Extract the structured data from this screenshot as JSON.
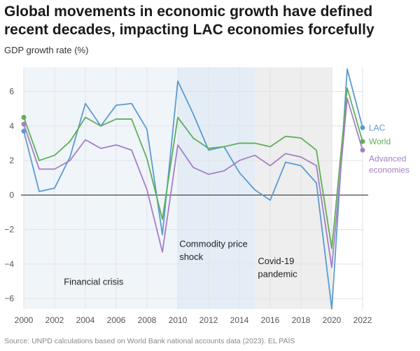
{
  "title": "Global movements in economic growth have defined recent decades, impacting LAC economies forcefully",
  "subtitle": "GDP growth rate (%)",
  "source": "Source: UNPD calculations based on World Bank national accounts data (2023). EL PAÍS",
  "colors": {
    "lac": "#5b9bd0",
    "world": "#5fae5a",
    "advanced": "#a57fc6",
    "shade": "#eef4fa",
    "shade_dark": "#e1ebf5",
    "shade_covid": "#ececec",
    "grid": "#e3e3e3",
    "zero": "#222222",
    "tick": "#555555"
  },
  "chart_data": {
    "type": "line",
    "title": "Global movements in economic growth have defined recent decades, impacting LAC economies forcefully",
    "xlabel": "",
    "ylabel": "GDP growth rate (%)",
    "xlim": [
      2000,
      2022
    ],
    "ylim": [
      -6.6,
      7.4
    ],
    "xticks": [
      "2000",
      "2002",
      "2004",
      "2006",
      "2008",
      "2010",
      "2012",
      "2014",
      "2016",
      "2018",
      "2020",
      "2022"
    ],
    "yticks": [
      "6",
      "4",
      "2",
      "0",
      "−2",
      "−4",
      "−6"
    ],
    "ytick_values": [
      6,
      4,
      2,
      0,
      -2,
      -4,
      -6
    ],
    "grid": true,
    "legend": "right end labels",
    "x": [
      2000,
      2001,
      2002,
      2003,
      2004,
      2005,
      2006,
      2007,
      2008,
      2009,
      2010,
      2011,
      2012,
      2013,
      2014,
      2015,
      2016,
      2017,
      2018,
      2019,
      2020,
      2021,
      2022
    ],
    "series": [
      {
        "name": "LAC",
        "color_key": "lac",
        "values": [
          3.7,
          0.2,
          0.4,
          2.2,
          5.3,
          4.0,
          5.2,
          5.3,
          3.8,
          -2.3,
          6.6,
          4.7,
          2.6,
          2.8,
          1.3,
          0.3,
          -0.3,
          1.9,
          1.7,
          0.7,
          -6.6,
          7.3,
          3.9
        ]
      },
      {
        "name": "World",
        "color_key": "world",
        "values": [
          4.5,
          2.0,
          2.3,
          3.1,
          4.5,
          4.0,
          4.4,
          4.4,
          2.1,
          -1.4,
          4.5,
          3.3,
          2.7,
          2.8,
          3.0,
          3.0,
          2.8,
          3.4,
          3.3,
          2.6,
          -3.1,
          6.2,
          3.1
        ]
      },
      {
        "name": "Advanced economies",
        "color_key": "advanced",
        "values": [
          4.1,
          1.5,
          1.5,
          2.0,
          3.2,
          2.7,
          2.9,
          2.6,
          0.3,
          -3.3,
          2.9,
          1.6,
          1.2,
          1.4,
          2.0,
          2.3,
          1.7,
          2.4,
          2.2,
          1.7,
          -4.2,
          5.6,
          2.6
        ]
      }
    ],
    "series_labels": {
      "lac": "LAC",
      "world": "World",
      "advanced_line1": "Advanced",
      "advanced_line2": "economies"
    },
    "annotations": [
      {
        "text": "Financial crisis"
      },
      {
        "text_line1": "Commodity price",
        "text_line2": "shock"
      },
      {
        "text_line1": "Covid-19",
        "text_line2": "pandemic"
      }
    ],
    "shaded_periods": [
      {
        "start": 2000,
        "end": 2010
      },
      {
        "start": 2010,
        "end": 2015
      },
      {
        "start": 2015,
        "end": 2020
      }
    ]
  }
}
